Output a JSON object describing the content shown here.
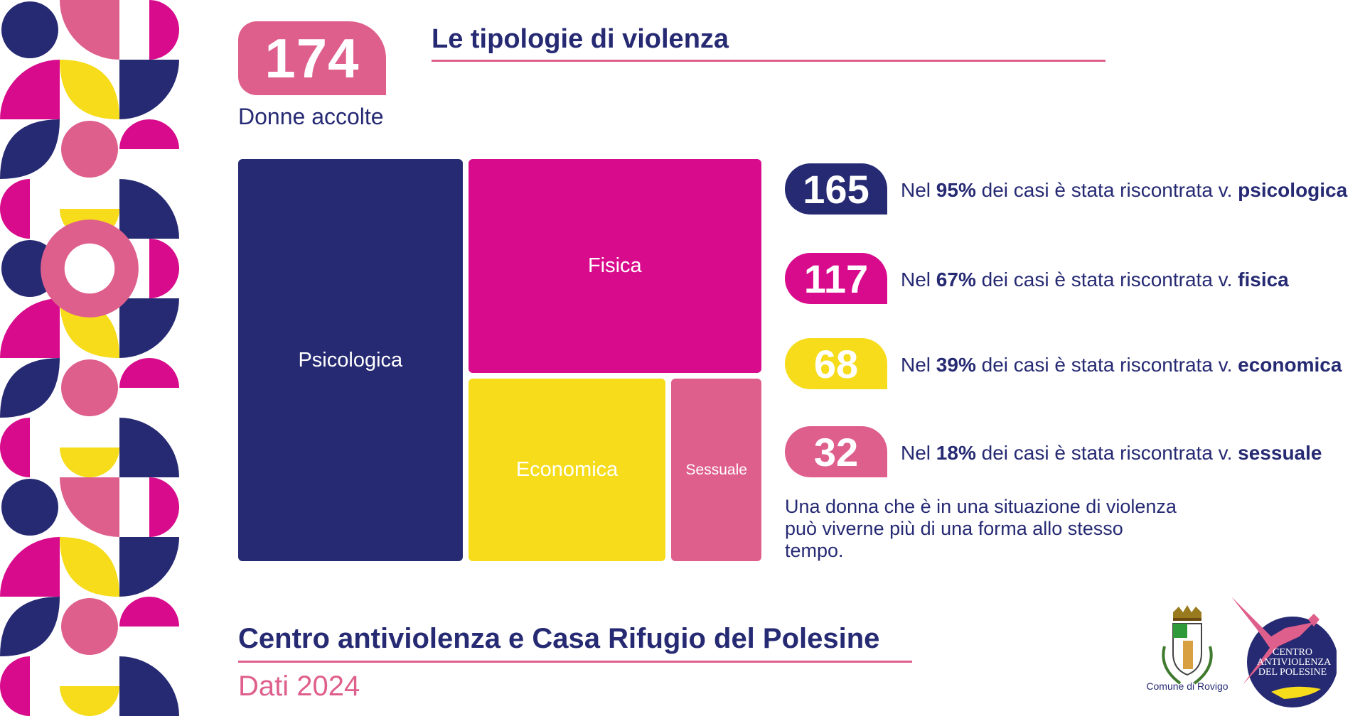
{
  "header": {
    "total_value": "174",
    "total_label": "Donne accolte",
    "title": "Le tipologie di violenza"
  },
  "chart_data": {
    "type": "treemap",
    "categories": [
      "Psicologica",
      "Fisica",
      "Economica",
      "Sessuale"
    ],
    "values": [
      165,
      117,
      68,
      32
    ],
    "colors": [
      "#262a73",
      "#d80b8c",
      "#f6dc1a",
      "#df5f8c"
    ]
  },
  "stats": [
    {
      "value": "165",
      "prefix": "Nel ",
      "pct": "95%",
      "middle": " dei casi è stata riscontrata v. ",
      "type": "psicologica",
      "color": "#262a73"
    },
    {
      "value": "117",
      "prefix": "Nel ",
      "pct": "67%",
      "middle": " dei casi è stata riscontrata v. ",
      "type": "fisica",
      "color": "#d80b8c"
    },
    {
      "value": "68",
      "prefix": "Nel ",
      "pct": "39%",
      "middle": " dei casi è stata riscontrata v. ",
      "type": "economica",
      "color": "#f6dc1a"
    },
    {
      "value": "32",
      "prefix": "Nel ",
      "pct": "18%",
      "middle": " dei casi è stata riscontrata v. ",
      "type": "sessuale",
      "color": "#df5f8c"
    }
  ],
  "note": "Una donna che è in una situazione di violenza può viverne più di una forma allo stesso tempo.",
  "footer": {
    "title": "Centro antiviolenza e Casa Rifugio del Polesine",
    "subtitle": "Dati 2024"
  },
  "logos": {
    "comune": "Comune di Rovigo",
    "centro": "CENTRO ANTIVIOLENZA DEL POLESINE"
  },
  "palette": {
    "navy": "#262a73",
    "magenta": "#d80b8c",
    "yellow": "#f6dc1a",
    "pink": "#df5f8c"
  }
}
